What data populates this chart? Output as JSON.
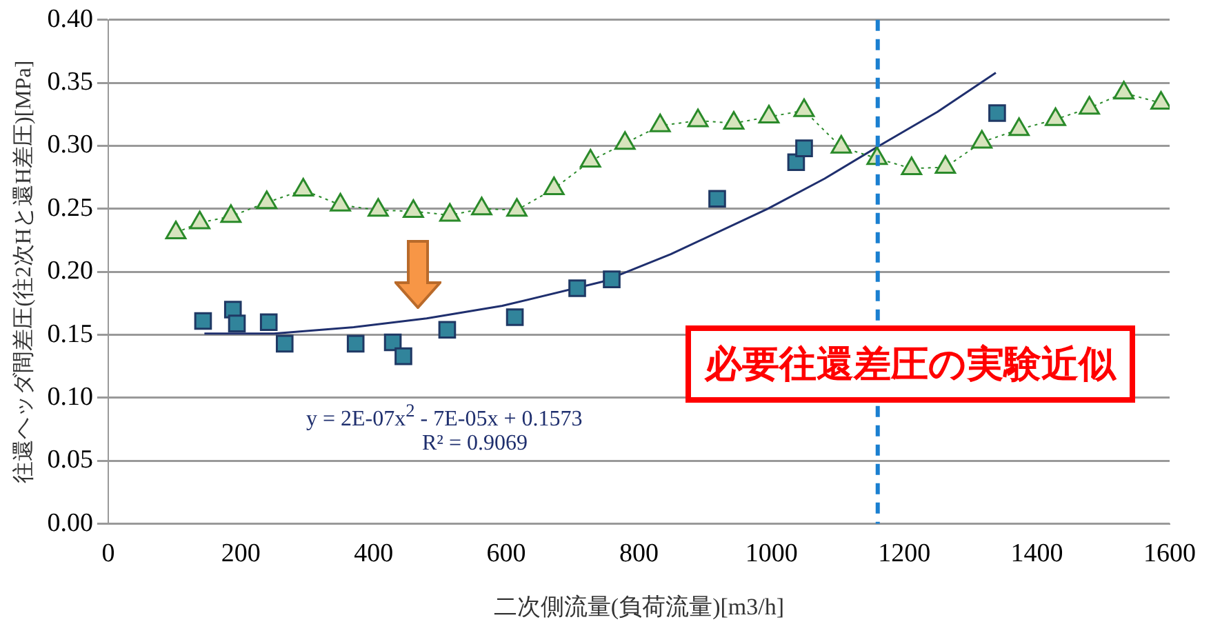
{
  "chart_data": {
    "type": "scatter",
    "xlabel": "二次側流量(負荷流量)[m3/h]",
    "ylabel": "往還ヘッダ間差圧(往2次Hと還H差圧)[MPa]",
    "xlim": [
      0,
      1600
    ],
    "xticks": [
      0,
      200,
      400,
      600,
      800,
      1000,
      1200,
      1400,
      1600
    ],
    "ylim": [
      0,
      0.4
    ],
    "yticks": [
      {
        "value": 0,
        "label": "0.00"
      },
      {
        "value": 0.05,
        "label": "0.05"
      },
      {
        "value": 0.1,
        "label": "0.10"
      },
      {
        "value": 0.15,
        "label": "0.15"
      },
      {
        "value": 0.2,
        "label": "0.20"
      },
      {
        "value": 0.25,
        "label": "0.25"
      },
      {
        "value": 0.3,
        "label": "0.30"
      },
      {
        "value": 0.35,
        "label": "0.35"
      },
      {
        "value": 0.4,
        "label": "0.40"
      }
    ],
    "grid": "y",
    "series": [
      {
        "type": "line",
        "marker": "triangle",
        "line_style": "dotted",
        "color": "#d7e4bd",
        "x": [
          102,
          138,
          185,
          239,
          294,
          350,
          407,
          460,
          515,
          563,
          616,
          672,
          727,
          779,
          832,
          889,
          943,
          996,
          1049,
          1105,
          1159,
          1211,
          1262,
          1317,
          1373,
          1428,
          1479,
          1531,
          1587
        ],
        "values": [
          0.231,
          0.239,
          0.244,
          0.255,
          0.265,
          0.253,
          0.249,
          0.248,
          0.245,
          0.25,
          0.249,
          0.266,
          0.288,
          0.302,
          0.316,
          0.32,
          0.318,
          0.323,
          0.328,
          0.299,
          0.29,
          0.282,
          0.283,
          0.303,
          0.313,
          0.321,
          0.33,
          0.342,
          0.334
        ]
      },
      {
        "marker": "square",
        "color": "#31849b",
        "x": [
          143,
          188,
          194,
          242,
          266,
          373,
          429,
          445,
          511,
          613,
          707,
          759,
          918,
          1037,
          1049,
          1340
        ],
        "values": [
          0.161,
          0.17,
          0.159,
          0.16,
          0.143,
          0.143,
          0.144,
          0.133,
          0.154,
          0.164,
          0.187,
          0.194,
          0.258,
          0.287,
          0.298,
          0.326
        ]
      },
      {
        "type": "line",
        "marker": "none",
        "line_style": "solid",
        "color": "#1f2f6e",
        "x": [
          145,
          250,
          370,
          480,
          594,
          744,
          848,
          994,
          1080,
          1159,
          1250,
          1338
        ],
        "values": [
          0.151,
          0.151,
          0.156,
          0.163,
          0.173,
          0.192,
          0.214,
          0.25,
          0.274,
          0.299,
          0.327,
          0.358
        ]
      }
    ],
    "ref_lines": [
      {
        "axis": "x",
        "value": 1160,
        "color": "#1a7fd0",
        "line_style": "dashed"
      }
    ],
    "annotations": [
      "y = 2E-07x$^{2}$ - 7E-05x + 0.1573",
      "R² = 0.9069",
      "必要往還差圧の実験近似"
    ]
  }
}
